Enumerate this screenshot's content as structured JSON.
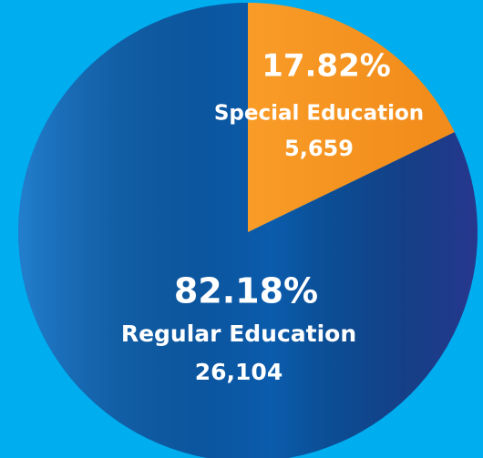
{
  "chart_data": {
    "type": "pie",
    "categories": [
      "Special Education",
      "Regular Education"
    ],
    "values": [
      17.82,
      82.18
    ],
    "value_labels": [
      "17.82%",
      "82.18%"
    ],
    "counts": [
      {
        "value": 5659,
        "label": "5,659"
      },
      {
        "value": 26104,
        "label": "26,104"
      }
    ],
    "colors": [
      "#f7941d",
      "#0b5cad"
    ]
  }
}
